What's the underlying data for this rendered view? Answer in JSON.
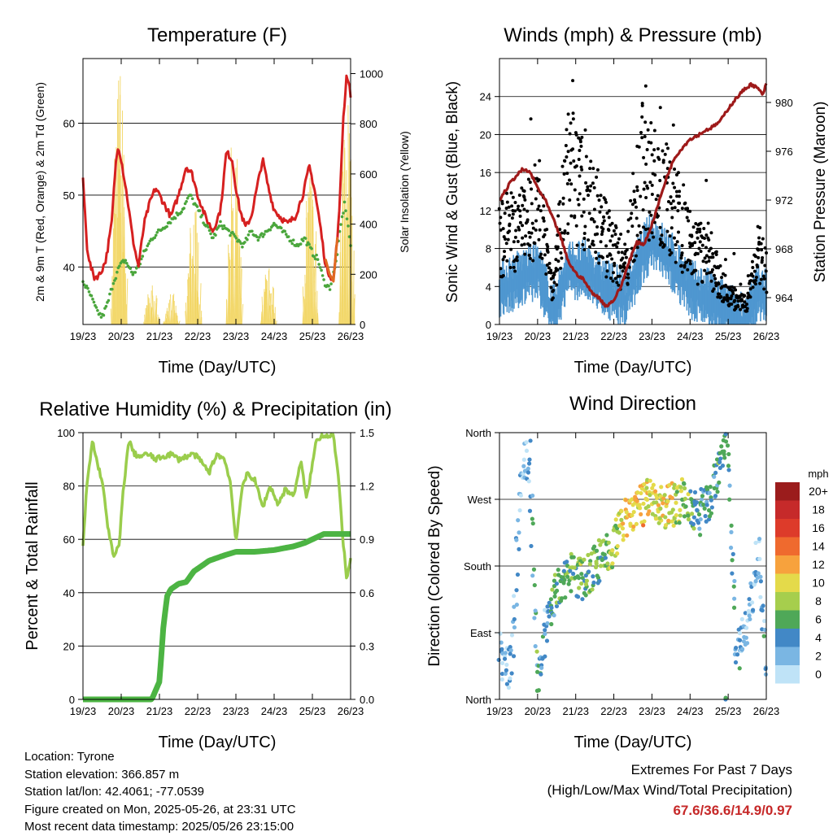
{
  "panels": {
    "temperature": {
      "title": "Temperature (F)",
      "xlabel": "Time (Day/UTC)",
      "ylabel_left": "2m & 9m T (Red, Orange) & 2m Td (Green)",
      "ylabel_right": "Solar Insolation (Yellow)"
    },
    "winds": {
      "title": "Winds (mph) & Pressure (mb)",
      "xlabel": "Time (Day/UTC)",
      "ylabel_left": "Sonic Wind & Gust (Blue, Black)",
      "ylabel_right": "Station Pressure (Maroon)"
    },
    "humidity": {
      "title": "Relative Humidity (%) & Precipitation (in)",
      "xlabel": "Time (Day/UTC)",
      "ylabel_left": "Percent & Total Rainfall"
    },
    "direction": {
      "title": "Wind Direction",
      "xlabel": "Time (Day/UTC)",
      "ylabel_left": "Direction (Colored By Speed)"
    }
  },
  "station_info": {
    "location": "Location: Tyrone",
    "elevation": "Station elevation: 366.857 m",
    "latlon": "Station lat/lon: 42.4061; -77.0539",
    "created": "Figure created on Mon, 2025-05-26, at 23:31 UTC",
    "timestamp": "Most recent data timestamp: 2025/05/26 23:15:00"
  },
  "extremes": {
    "heading": "Extremes For Past 7 Days",
    "subheading": "(High/Low/Max Wind/Total Precipitation)",
    "values": "67.6/36.6/14.9/0.97"
  },
  "colorbar": {
    "unit": "mph",
    "labels": [
      "20+",
      "18",
      "16",
      "14",
      "12",
      "10",
      "8",
      "6",
      "4",
      "2",
      "0"
    ],
    "colors": [
      "#9b1c1c",
      "#c62a2a",
      "#dd3b2a",
      "#ef6a2e",
      "#f7a23d",
      "#e4da4a",
      "#a6ce4d",
      "#4fa858",
      "#4288c6",
      "#7ab6e3",
      "#bfe3f7"
    ]
  },
  "chart_data": [
    {
      "type": "line",
      "title": "Temperature (F)",
      "xlabel": "Time (Day/UTC)",
      "ylabel": "2m & 9m T (Red, Orange) & 2m Td (Green)",
      "y2label": "Solar Insolation (Yellow)",
      "x_ticks": [
        "19/23",
        "20/23",
        "21/23",
        "22/23",
        "23/23",
        "24/23",
        "25/23",
        "26/23"
      ],
      "ylim": [
        32,
        69
      ],
      "y_ticks": [
        40,
        50,
        60
      ],
      "y2lim": [
        0,
        1060
      ],
      "y2_ticks": [
        0,
        200,
        400,
        600,
        800,
        1000
      ],
      "grid": true,
      "series": [
        {
          "axis": "left",
          "color": "#d62020",
          "x": [
            0,
            0.05,
            0.1,
            0.2,
            0.3,
            0.45,
            0.6,
            0.75,
            0.85,
            0.92,
            1.0,
            1.15,
            1.3,
            1.45,
            1.6,
            1.75,
            1.9,
            2.1,
            2.3,
            2.5,
            2.7,
            2.85,
            3.0,
            3.2,
            3.4,
            3.6,
            3.75,
            3.9,
            4.0,
            4.1,
            4.25,
            4.4,
            4.55,
            4.7,
            4.85,
            5.0,
            5.15,
            5.35,
            5.55,
            5.75,
            5.92,
            6.05,
            6.2,
            6.35,
            6.55,
            6.7,
            6.8,
            6.9,
            7.0
          ],
          "y": [
            52,
            48,
            43,
            40,
            38.5,
            39,
            41,
            46,
            54,
            57,
            55,
            50,
            44,
            40,
            46,
            49,
            51,
            49,
            47,
            50,
            54,
            53,
            50,
            47,
            45,
            48,
            56,
            55,
            51,
            48,
            45.5,
            47,
            51,
            55,
            51,
            48,
            47,
            46,
            47,
            50,
            54,
            51,
            46,
            40,
            38,
            47,
            60,
            67,
            64
          ]
        },
        {
          "axis": "left",
          "color": "#e06a22",
          "x": [
            6.35,
            6.45,
            6.55,
            6.65
          ],
          "y": [
            41,
            39,
            38,
            44
          ]
        },
        {
          "axis": "left",
          "color": "#4aa63c",
          "x": [
            0,
            0.1,
            0.2,
            0.35,
            0.5,
            0.65,
            0.8,
            0.95,
            1.1,
            1.3,
            1.45,
            1.6,
            1.8,
            2.0,
            2.2,
            2.4,
            2.6,
            2.8,
            3.0,
            3.2,
            3.4,
            3.6,
            3.8,
            4.0,
            4.2,
            4.4,
            4.6,
            4.8,
            5.0,
            5.2,
            5.4,
            5.6,
            5.8,
            6.0,
            6.15,
            6.3,
            6.45,
            6.6,
            6.75,
            6.85,
            6.95,
            7.0
          ],
          "y": [
            38,
            37,
            36,
            34,
            33,
            35,
            38,
            40,
            41,
            39,
            40,
            42,
            44,
            45,
            46,
            47,
            48,
            50,
            48,
            46,
            44,
            46,
            45,
            44,
            43,
            45,
            44,
            45,
            46,
            45,
            44,
            43,
            44,
            42,
            41,
            38,
            37,
            40,
            46,
            49,
            45,
            43
          ]
        },
        {
          "axis": "right",
          "color": "#f2d45c",
          "peaks_x": [
            0.95,
            1.8,
            2.3,
            2.9,
            3.95,
            4.85,
            5.95,
            6.9
          ],
          "peaks_y": [
            1050,
            160,
            130,
            510,
            750,
            240,
            620,
            1060
          ]
        }
      ]
    },
    {
      "type": "scatter",
      "title": "Winds (mph) & Pressure (mb)",
      "xlabel": "Time (Day/UTC)",
      "ylabel": "Sonic Wind & Gust (Blue, Black)",
      "y2label": "Station Pressure (Maroon)",
      "x_ticks": [
        "19/23",
        "20/23",
        "21/23",
        "22/23",
        "23/23",
        "24/23",
        "25/23",
        "26/23"
      ],
      "ylim": [
        0,
        28
      ],
      "y_ticks": [
        0,
        4,
        8,
        12,
        16,
        20,
        24
      ],
      "y2lim": [
        961.8,
        983.6
      ],
      "y2_ticks": [
        964,
        968,
        972,
        976,
        980
      ],
      "grid": true,
      "series": [
        {
          "name": "Pressure",
          "axis": "right",
          "color": "#9e1a1a",
          "type": "line",
          "x": [
            0,
            0.3,
            0.6,
            0.8,
            1.0,
            1.2,
            1.4,
            1.6,
            1.8,
            2.0,
            2.2,
            2.4,
            2.6,
            2.8,
            3.0,
            3.2,
            3.4,
            3.6,
            3.8,
            4.0,
            4.2,
            4.4,
            4.6,
            4.8,
            5.0,
            5.2,
            5.4,
            5.6,
            5.8,
            6.0,
            6.2,
            6.4,
            6.6,
            6.8,
            6.9,
            7.0
          ],
          "y": [
            972,
            973.5,
            974.5,
            974.3,
            973,
            972,
            970.5,
            969,
            967,
            966,
            965.5,
            964.5,
            964,
            963.3,
            963.8,
            965,
            967,
            968.5,
            968.4,
            970,
            972,
            974,
            975.5,
            976.3,
            977,
            977.3,
            977.7,
            978,
            978.5,
            979.5,
            980.3,
            981,
            981.5,
            981.1,
            980.6,
            981.5
          ]
        },
        {
          "name": "Gust",
          "axis": "left",
          "color": "#000000",
          "type": "scatter",
          "level_x": [
            0,
            0.5,
            1.0,
            1.4,
            1.8,
            2.3,
            2.8,
            3.3,
            3.8,
            4.0,
            4.5,
            5.0,
            5.5,
            6.0,
            6.5,
            6.8,
            7.0
          ],
          "level_y": [
            9,
            10,
            12,
            4,
            16,
            14,
            9,
            6,
            18,
            15,
            13,
            8,
            7,
            3,
            2,
            8,
            6
          ]
        },
        {
          "name": "Wind",
          "axis": "left",
          "color": "#4f97d0",
          "type": "scatter",
          "level_x": [
            0,
            0.5,
            1.0,
            1.4,
            1.8,
            2.3,
            2.8,
            3.3,
            3.8,
            4.0,
            4.5,
            5.0,
            5.5,
            6.0,
            6.5,
            6.8,
            7.0
          ],
          "level_y": [
            4,
            5,
            6,
            1.5,
            6,
            6,
            4,
            3,
            8,
            9,
            7,
            4,
            3,
            1.5,
            0.5,
            4,
            3
          ]
        }
      ]
    },
    {
      "type": "line",
      "title": "Relative Humidity (%) & Precipitation (in)",
      "xlabel": "Time (Day/UTC)",
      "ylabel": "Percent & Total Rainfall",
      "x_ticks": [
        "19/23",
        "20/23",
        "21/23",
        "22/23",
        "23/23",
        "24/23",
        "25/23",
        "26/23"
      ],
      "ylim": [
        0,
        100
      ],
      "y_ticks": [
        0,
        20,
        40,
        60,
        80,
        100
      ],
      "y2lim": [
        0,
        1.5
      ],
      "y2_ticks": [
        "0.0",
        "0.3",
        "0.6",
        "0.9",
        "1.2",
        "1.5"
      ],
      "grid": true,
      "series": [
        {
          "name": "RH",
          "axis": "left",
          "color": "#9acd4c",
          "x": [
            0,
            0.1,
            0.25,
            0.35,
            0.5,
            0.65,
            0.8,
            0.95,
            1.05,
            1.2,
            1.35,
            1.5,
            1.7,
            1.9,
            2.1,
            2.3,
            2.5,
            2.7,
            2.9,
            3.1,
            3.3,
            3.5,
            3.7,
            3.85,
            4.0,
            4.15,
            4.3,
            4.5,
            4.7,
            4.9,
            5.1,
            5.3,
            5.5,
            5.7,
            5.85,
            6.0,
            6.1,
            6.25,
            6.4,
            6.55,
            6.7,
            6.8,
            6.9,
            7.0
          ],
          "y": [
            57,
            80,
            97,
            90,
            82,
            65,
            53,
            58,
            78,
            97,
            92,
            91,
            92,
            90,
            91,
            92,
            90,
            91,
            92,
            89,
            85,
            92,
            90,
            82,
            59,
            78,
            85,
            82,
            72,
            80,
            73,
            79,
            76,
            89,
            75,
            88,
            97,
            99,
            99,
            99,
            80,
            60,
            45,
            52
          ]
        },
        {
          "name": "Precipitation",
          "axis": "right",
          "color": "#4cb443",
          "x": [
            0,
            1.8,
            2.0,
            2.1,
            2.2,
            2.3,
            2.5,
            2.7,
            2.9,
            3.3,
            3.7,
            4.0,
            4.5,
            5.0,
            5.5,
            5.8,
            6.0,
            6.3,
            7.0
          ],
          "y": [
            0,
            0,
            0.1,
            0.4,
            0.58,
            0.62,
            0.65,
            0.66,
            0.72,
            0.78,
            0.81,
            0.83,
            0.83,
            0.84,
            0.86,
            0.88,
            0.9,
            0.93,
            0.93
          ]
        }
      ]
    },
    {
      "type": "scatter",
      "title": "Wind Direction",
      "xlabel": "Time (Day/UTC)",
      "ylabel": "Direction (Colored By Speed)",
      "x_ticks": [
        "19/23",
        "20/23",
        "21/23",
        "22/23",
        "23/23",
        "24/23",
        "25/23",
        "26/23"
      ],
      "y_ticks": [
        "North",
        "East",
        "South",
        "West",
        "North"
      ],
      "ylim": [
        0,
        360
      ],
      "grid": true,
      "series": [
        {
          "name": "Direction",
          "color_by": "speed",
          "level_x": [
            0,
            0.3,
            0.6,
            0.8,
            1.0,
            1.2,
            1.5,
            1.8,
            2.1,
            2.5,
            2.9,
            3.3,
            3.7,
            4.0,
            4.4,
            4.8,
            5.2,
            5.5,
            5.8,
            6.0,
            6.2,
            6.5,
            6.8,
            7.0
          ],
          "level_y": [
            60,
            40,
            320,
            320,
            30,
            90,
            150,
            170,
            160,
            180,
            200,
            240,
            260,
            270,
            260,
            270,
            250,
            260,
            320,
            350,
            60,
            90,
            200,
            50
          ]
        }
      ]
    }
  ]
}
